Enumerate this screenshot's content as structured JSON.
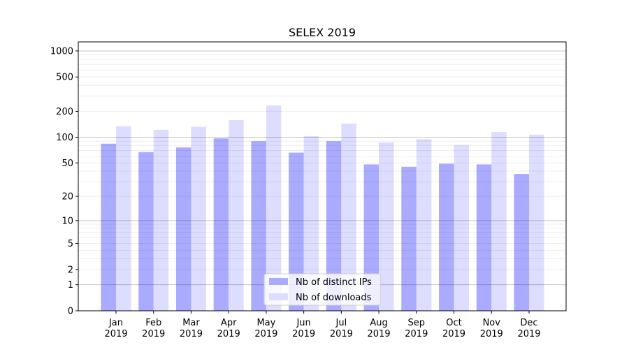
{
  "chart_data": {
    "type": "bar",
    "title": "SELEX 2019",
    "xlabel": "",
    "ylabel": "",
    "yscale": "log(1+y)",
    "ylim": [
      0,
      1270
    ],
    "grid": true,
    "legend_position": "bottom-center",
    "categories": [
      "Jan\n2019",
      "Feb\n2019",
      "Mar\n2019",
      "Apr\n2019",
      "May\n2019",
      "Jun\n2019",
      "Jul\n2019",
      "Aug\n2019",
      "Sep\n2019",
      "Oct\n2019",
      "Nov\n2019",
      "Dec\n2019"
    ],
    "yticks": [
      0,
      1,
      2,
      5,
      10,
      20,
      50,
      100,
      200,
      500,
      1000
    ],
    "ytick_labels": [
      "0",
      "1",
      "2",
      "5",
      "10",
      "20",
      "50",
      "100",
      "200",
      "500",
      "1000"
    ],
    "series": [
      {
        "name": "Nb of distinct IPs",
        "color": "#aaaaff",
        "values": [
          84,
          67,
          76,
          97,
          90,
          66,
          90,
          48,
          45,
          49,
          48,
          37
        ]
      },
      {
        "name": "Nb of downloads",
        "color": "#ddddff",
        "values": [
          134,
          122,
          132,
          158,
          234,
          103,
          144,
          87,
          95,
          81,
          115,
          107
        ]
      }
    ]
  }
}
